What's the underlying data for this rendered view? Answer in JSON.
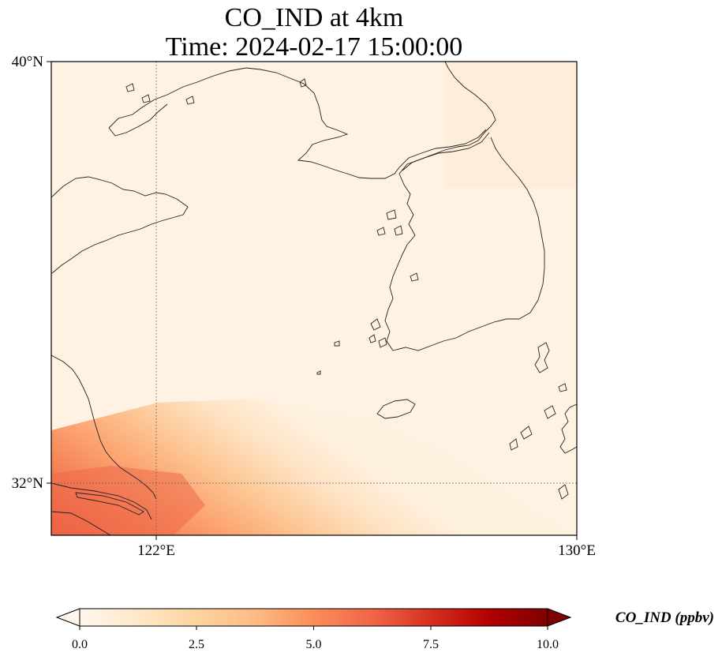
{
  "title": {
    "line1": "CO_IND at 4km",
    "line2": "Time: 2024-02-17 15:00:00"
  },
  "axes": {
    "lat_labels": [
      "40°N",
      "32°N"
    ],
    "lon_labels": [
      "122°E",
      "130°E"
    ],
    "lat_range": [
      31,
      40
    ],
    "lon_range": [
      120,
      130
    ],
    "gridlines": "dotted"
  },
  "colorbar": {
    "label": "CO_IND (ppbv)",
    "min": 0.0,
    "max": 10.0,
    "ticks": [
      "0.0",
      "2.5",
      "5.0",
      "7.5",
      "10.0"
    ],
    "colormap": "OrRd",
    "extend": "both",
    "colors": [
      "#fff7ec",
      "#fee8c8",
      "#fdd49e",
      "#fdbb84",
      "#fc8d59",
      "#ef6548",
      "#d7301f",
      "#b30000",
      "#7f0000"
    ]
  },
  "field": {
    "background": "#fff1e0",
    "high_corner": "south-west"
  }
}
